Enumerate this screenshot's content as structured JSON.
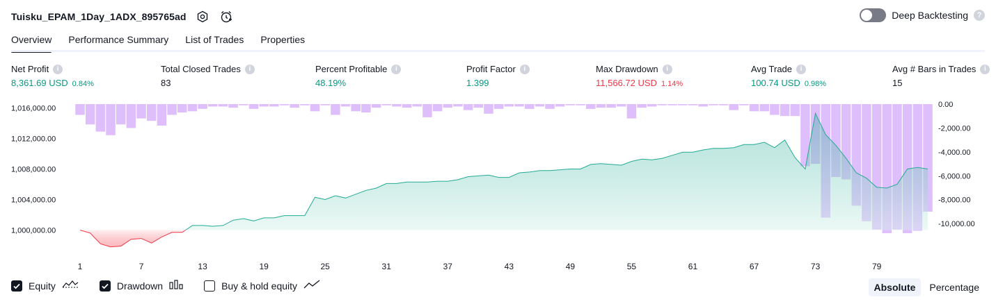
{
  "header": {
    "strategy_name": "Tuisku_EPAM_1Day_1ADX_895765ad",
    "deep_backtesting_label": "Deep Backtesting",
    "deep_backtesting_on": false,
    "help_glyph": "?"
  },
  "tabs": [
    "Overview",
    "Performance Summary",
    "List of Trades",
    "Properties"
  ],
  "active_tab": 0,
  "metrics": [
    {
      "label": "Net Profit",
      "value": "8,361.69 USD",
      "sub": "0.84%",
      "color": "green"
    },
    {
      "label": "Total Closed Trades",
      "value": "83",
      "sub": "",
      "color": "black"
    },
    {
      "label": "Percent Profitable",
      "value": "48.19%",
      "sub": "",
      "color": "green"
    },
    {
      "label": "Profit Factor",
      "value": "1.399",
      "sub": "",
      "color": "green"
    },
    {
      "label": "Max Drawdown",
      "value": "11,566.72 USD",
      "sub": "1.14%",
      "color": "red"
    },
    {
      "label": "Avg Trade",
      "value": "100.74 USD",
      "sub": "0.98%",
      "color": "green"
    },
    {
      "label": "Avg # Bars in Trades",
      "value": "15",
      "sub": "",
      "color": "black"
    }
  ],
  "legend": {
    "equity": {
      "label": "Equity",
      "checked": true
    },
    "drawdown": {
      "label": "Drawdown",
      "checked": true
    },
    "buy_hold": {
      "label": "Buy & hold equity",
      "checked": false
    }
  },
  "modes": {
    "absolute": "Absolute",
    "percentage": "Percentage",
    "active": "absolute"
  },
  "colors": {
    "equity_line": "#22ab94",
    "equity_fill": "#d6f1ea",
    "loss_line": "#f23645",
    "loss_fill": "#fde0e2",
    "drawdown_bar": "#d9b3fc",
    "text": "#131722"
  },
  "chart_data": [
    {
      "type": "area",
      "name": "Equity",
      "y_axis": "left",
      "ylim": [
        998500,
        1016500
      ],
      "y_ticks": [
        "1,000,000.00",
        "1,004,000.00",
        "1,008,000.00",
        "1,012,000.00",
        "1,016,000.00"
      ],
      "y_tick_values": [
        1000000,
        1004000,
        1008000,
        1012000,
        1016000
      ],
      "x_ticks": [
        1,
        7,
        13,
        19,
        25,
        31,
        37,
        43,
        49,
        55,
        61,
        67,
        73,
        79
      ],
      "x": [
        1,
        2,
        3,
        4,
        5,
        6,
        7,
        8,
        9,
        10,
        11,
        12,
        13,
        14,
        15,
        16,
        17,
        18,
        19,
        20,
        21,
        22,
        23,
        24,
        25,
        26,
        27,
        28,
        29,
        30,
        31,
        32,
        33,
        34,
        35,
        36,
        37,
        38,
        39,
        40,
        41,
        42,
        43,
        44,
        45,
        46,
        47,
        48,
        49,
        50,
        51,
        52,
        53,
        54,
        55,
        56,
        57,
        58,
        59,
        60,
        61,
        62,
        63,
        64,
        65,
        66,
        67,
        68,
        69,
        70,
        71,
        72,
        73,
        74,
        75,
        76,
        77,
        78,
        79,
        80,
        81,
        82,
        83,
        84
      ],
      "values": [
        1000000,
        999600,
        998200,
        997800,
        997900,
        998800,
        998900,
        998300,
        999100,
        999700,
        999700,
        1000600,
        1000600,
        1000500,
        1000600,
        1001300,
        1001500,
        1001200,
        1001600,
        1001600,
        1001900,
        1001900,
        1001900,
        1004300,
        1004000,
        1004500,
        1004200,
        1004700,
        1005200,
        1005500,
        1006100,
        1006100,
        1006300,
        1006300,
        1006300,
        1006400,
        1006400,
        1006600,
        1007000,
        1007100,
        1007200,
        1006900,
        1006900,
        1007500,
        1007600,
        1007800,
        1007800,
        1007900,
        1008000,
        1008000,
        1008600,
        1008700,
        1008600,
        1008500,
        1009000,
        1009300,
        1009200,
        1009400,
        1009800,
        1010200,
        1010200,
        1010500,
        1010700,
        1010700,
        1010800,
        1011200,
        1011200,
        1011500,
        1010800,
        1011800,
        1009500,
        1008000,
        1015300,
        1012500,
        1011100,
        1009400,
        1007500,
        1006800,
        1005600,
        1005500,
        1006000,
        1008000,
        1008200,
        1008000
      ]
    },
    {
      "type": "bar",
      "name": "Drawdown",
      "y_axis": "right",
      "ylim": [
        -11500,
        0
      ],
      "y_ticks": [
        "0.00",
        "-2,000.00",
        "-4,000.00",
        "-6,000.00",
        "-8,000.00",
        "-10,000.00"
      ],
      "y_tick_values": [
        0,
        -2000,
        -4000,
        -6000,
        -8000,
        -10000
      ],
      "values": [
        -900,
        -1700,
        -2300,
        -2600,
        -1700,
        -2000,
        -1200,
        -1400,
        -1800,
        -900,
        -700,
        -600,
        -400,
        -200,
        -200,
        -300,
        -100,
        -400,
        -200,
        -200,
        -100,
        -300,
        -100,
        -600,
        -100,
        -900,
        -200,
        -600,
        -700,
        -300,
        -100,
        -200,
        -300,
        -200,
        -1100,
        -600,
        -300,
        -200,
        -500,
        -300,
        -800,
        -400,
        -200,
        -200,
        -400,
        -200,
        -400,
        -200,
        -100,
        -100,
        -400,
        -300,
        -300,
        -200,
        -1200,
        -300,
        -200,
        -100,
        -100,
        -100,
        -100,
        -200,
        -100,
        -100,
        -500,
        -100,
        -600,
        -600,
        -900,
        -1000,
        -1000,
        -5200,
        -5000,
        -9500,
        -6100,
        -6300,
        -8500,
        -9800,
        -10500,
        -10800,
        -10500,
        -10800,
        -10600,
        -9000
      ]
    }
  ]
}
